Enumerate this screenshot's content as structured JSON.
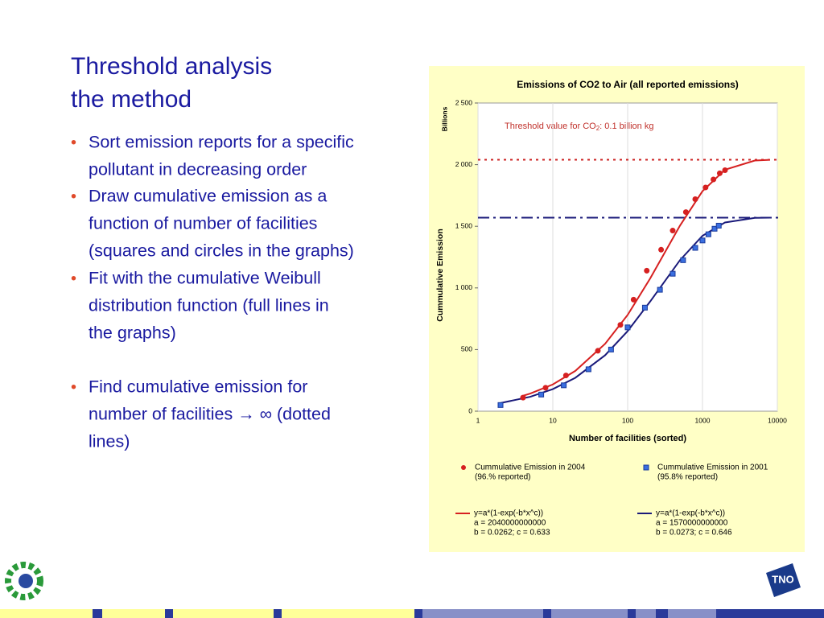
{
  "slide": {
    "title": [
      "Threshold analysis",
      "the method"
    ],
    "bullets": [
      [
        "Sort emission reports for a specific",
        "pollutant in decreasing order"
      ],
      [
        "Draw cumulative emission as a",
        "function of number of facilities",
        "(squares and circles in the graphs)"
      ],
      [
        "Fit with the cumulative Weibull",
        "distribution function (full lines in",
        "the graphs)"
      ],
      [
        "Find cumulative emission for",
        "number of facilities → ∞ (dotted",
        "lines)"
      ]
    ],
    "logo_text": "TNO"
  },
  "chart_data": {
    "type": "scatter",
    "title": "Emissions of CO2 to Air (all reported emissions)",
    "xlabel": "Number of facilities (sorted)",
    "ylabel": "Cummulative Emission",
    "yunit": "Billions",
    "annotation": [
      "Threshold value for CO",
      "2",
      ": 0.1 billion kg"
    ],
    "xscale": "log",
    "xlim": [
      1,
      10000
    ],
    "xticks": [
      1,
      10,
      100,
      1000,
      10000
    ],
    "ylim": [
      0,
      2500
    ],
    "yticks": [
      0,
      500,
      {
        "value": 1000,
        "label": "1 000"
      },
      {
        "value": 1500,
        "label": "1 500"
      },
      {
        "value": 2000,
        "label": "2 000"
      },
      {
        "value": 2500,
        "label": "2 500"
      }
    ],
    "grid": true,
    "reference_lines": [
      {
        "value": 2040,
        "color": "#cc2222",
        "style": "dotted"
      },
      {
        "value": 1570,
        "color": "#1a1a7a",
        "style": "dashdot"
      }
    ],
    "series": [
      {
        "name": "Cummulative Emission in 2004",
        "legend_note": [
          "(96.% reported)"
        ],
        "kind": "marker",
        "marker": "circle",
        "color": "#d62020",
        "x": [
          4,
          8,
          15,
          40,
          80,
          120,
          180,
          280,
          400,
          600,
          800,
          1100,
          1400,
          1700,
          2000
        ],
        "values": [
          110,
          190,
          290,
          490,
          700,
          905,
          1140,
          1310,
          1465,
          1615,
          1720,
          1815,
          1880,
          1930,
          1955
        ]
      },
      {
        "name": "Cummulative Emission in 2001",
        "legend_note": [
          "(95.8% reported)"
        ],
        "kind": "marker",
        "marker": "square",
        "color": "#3b6fe0",
        "x": [
          2,
          7,
          14,
          30,
          60,
          100,
          170,
          270,
          400,
          550,
          800,
          1000,
          1200,
          1450,
          1650
        ],
        "values": [
          50,
          135,
          210,
          340,
          500,
          680,
          840,
          985,
          1115,
          1225,
          1325,
          1385,
          1435,
          1480,
          1505
        ]
      },
      {
        "name": "y=a*(1-exp(-b*x^c))",
        "legend_note": [
          "a = 2040000000000",
          "b = 0.0262; c = 0.633"
        ],
        "kind": "line",
        "color": "#d62020",
        "x": [
          4,
          5,
          10,
          20,
          50,
          100,
          200,
          500,
          1000,
          2000,
          5000,
          8000
        ],
        "values": [
          125,
          143,
          217,
          327,
          547,
          781,
          1077,
          1505,
          1785,
          1959,
          2033,
          2039
        ]
      },
      {
        "name": "y=a*(1-exp(-b*x^c))",
        "legend_note": [
          "a = 1570000000000",
          "b = 0.0273; c = 0.646"
        ],
        "kind": "line",
        "color": "#1a1a7a",
        "x": [
          2,
          5,
          10,
          20,
          50,
          100,
          200,
          500,
          1000,
          2000,
          5000,
          8000
        ],
        "values": [
          66,
          117,
          179,
          271,
          454,
          650,
          890,
          1225,
          1423,
          1531,
          1568,
          1570
        ]
      }
    ]
  }
}
